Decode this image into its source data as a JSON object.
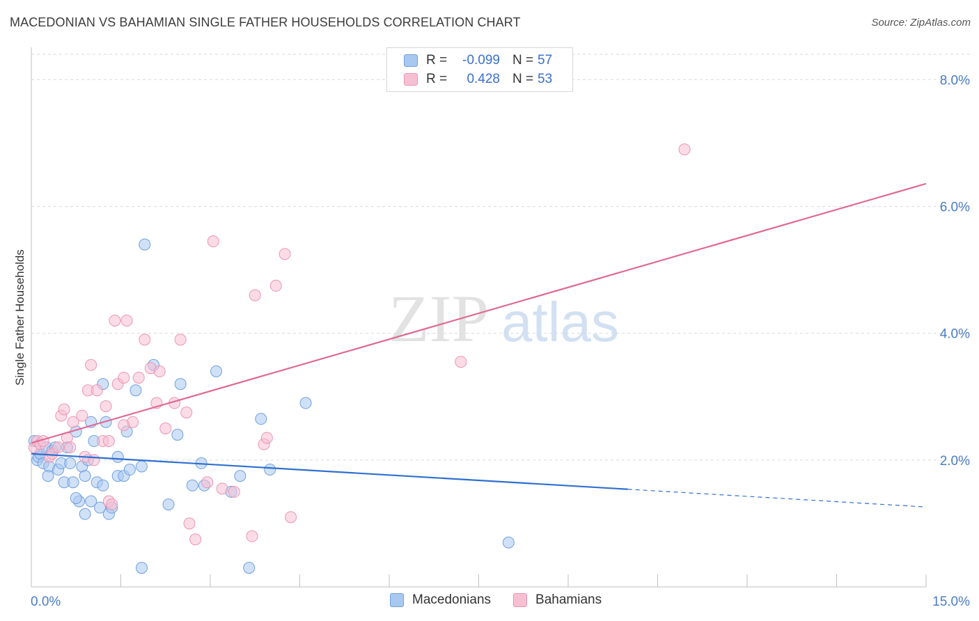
{
  "title": "MACEDONIAN VS BAHAMIAN SINGLE FATHER HOUSEHOLDS CORRELATION CHART",
  "source": "Source: ZipAtlas.com",
  "watermark": {
    "zip": "ZIP",
    "atlas": "atlas"
  },
  "legend": {
    "rows": [
      {
        "r_label": "R =",
        "r_value": "-0.099",
        "n_label": "N =",
        "n_value": "57"
      },
      {
        "r_label": "R =",
        "r_value": "0.428",
        "n_label": "N =",
        "n_value": "53"
      }
    ]
  },
  "bottom_legend": {
    "macedonians": "Macedonians",
    "bahamians": "Bahamians"
  },
  "colors": {
    "macedonian_fill": "#a9c8f0",
    "macedonian_stroke": "#6f9fe0",
    "macedonian_line": "#2e6fcf",
    "bahamian_fill": "#f7bfd2",
    "bahamian_stroke": "#ec94b2",
    "bahamian_line": "#e06a95",
    "tick_text": "#4a7cc9"
  },
  "chart_data": {
    "type": "scatter",
    "xlabel": "",
    "ylabel": "Single Father Households",
    "xlim": [
      0,
      15
    ],
    "ylim": [
      0,
      8.4
    ],
    "x_tick_labels": [
      {
        "value": 0,
        "label": "0.0%"
      },
      {
        "value": 15,
        "label": "15.0%"
      }
    ],
    "y_tick_labels": [
      {
        "value": 2,
        "label": "2.0%"
      },
      {
        "value": 4,
        "label": "4.0%"
      },
      {
        "value": 6,
        "label": "6.0%"
      },
      {
        "value": 8,
        "label": "8.0%"
      }
    ],
    "series": [
      {
        "name": "Macedonians",
        "r": -0.099,
        "n": 57,
        "trend": {
          "x0": 0,
          "y0": 2.1,
          "x_solid_end": 10,
          "x1": 15,
          "y1": 1.26
        },
        "points": [
          [
            0.05,
            2.3
          ],
          [
            0.1,
            2.0
          ],
          [
            0.12,
            2.05
          ],
          [
            0.15,
            2.1
          ],
          [
            0.2,
            1.95
          ],
          [
            0.25,
            2.2
          ],
          [
            0.3,
            1.9
          ],
          [
            0.35,
            2.15
          ],
          [
            0.28,
            1.75
          ],
          [
            0.4,
            2.2
          ],
          [
            0.45,
            1.85
          ],
          [
            0.5,
            1.95
          ],
          [
            0.55,
            1.65
          ],
          [
            0.6,
            2.2
          ],
          [
            0.65,
            1.95
          ],
          [
            0.7,
            1.65
          ],
          [
            0.85,
            1.9
          ],
          [
            0.75,
            2.45
          ],
          [
            0.95,
            2.0
          ],
          [
            1.0,
            2.6
          ],
          [
            1.05,
            2.3
          ],
          [
            0.9,
            1.75
          ],
          [
            0.8,
            1.35
          ],
          [
            0.75,
            1.4
          ],
          [
            0.9,
            1.15
          ],
          [
            1.0,
            1.35
          ],
          [
            1.1,
            1.65
          ],
          [
            1.15,
            1.25
          ],
          [
            1.2,
            1.6
          ],
          [
            1.3,
            1.15
          ],
          [
            1.35,
            1.25
          ],
          [
            1.45,
            2.05
          ],
          [
            1.25,
            2.6
          ],
          [
            1.45,
            1.75
          ],
          [
            1.55,
            1.75
          ],
          [
            1.6,
            2.45
          ],
          [
            1.65,
            1.85
          ],
          [
            1.75,
            3.1
          ],
          [
            1.85,
            1.9
          ],
          [
            1.9,
            5.4
          ],
          [
            2.05,
            3.5
          ],
          [
            2.3,
            1.3
          ],
          [
            2.45,
            2.4
          ],
          [
            2.5,
            3.2
          ],
          [
            2.7,
            1.6
          ],
          [
            2.85,
            1.95
          ],
          [
            2.9,
            1.6
          ],
          [
            3.1,
            3.4
          ],
          [
            3.35,
            1.5
          ],
          [
            3.5,
            1.75
          ],
          [
            3.85,
            2.65
          ],
          [
            4.0,
            1.85
          ],
          [
            4.6,
            2.9
          ],
          [
            8.0,
            0.7
          ],
          [
            1.85,
            0.3
          ],
          [
            3.65,
            0.3
          ],
          [
            1.2,
            3.2
          ]
        ]
      },
      {
        "name": "Bahamians",
        "r": 0.428,
        "n": 53,
        "trend": {
          "x0": 0,
          "y0": 2.27,
          "x1": 15,
          "y1": 6.36
        },
        "points": [
          [
            0.05,
            2.2
          ],
          [
            0.1,
            2.3
          ],
          [
            0.15,
            2.25
          ],
          [
            0.2,
            2.3
          ],
          [
            0.3,
            2.05
          ],
          [
            0.35,
            2.1
          ],
          [
            0.45,
            2.2
          ],
          [
            0.5,
            2.7
          ],
          [
            0.55,
            2.8
          ],
          [
            0.6,
            2.35
          ],
          [
            0.65,
            2.2
          ],
          [
            0.7,
            2.6
          ],
          [
            0.85,
            2.7
          ],
          [
            0.9,
            2.05
          ],
          [
            0.95,
            3.1
          ],
          [
            1.0,
            3.5
          ],
          [
            1.05,
            2.0
          ],
          [
            1.1,
            3.1
          ],
          [
            1.2,
            2.3
          ],
          [
            1.25,
            2.85
          ],
          [
            1.3,
            2.3
          ],
          [
            1.4,
            4.2
          ],
          [
            1.45,
            3.2
          ],
          [
            1.55,
            3.3
          ],
          [
            1.6,
            4.2
          ],
          [
            1.7,
            2.6
          ],
          [
            1.8,
            3.3
          ],
          [
            1.9,
            3.9
          ],
          [
            2.0,
            3.45
          ],
          [
            2.1,
            2.9
          ],
          [
            2.15,
            3.4
          ],
          [
            2.25,
            2.5
          ],
          [
            2.4,
            2.9
          ],
          [
            2.5,
            3.9
          ],
          [
            2.6,
            2.75
          ],
          [
            2.65,
            1.0
          ],
          [
            2.75,
            0.75
          ],
          [
            2.95,
            1.65
          ],
          [
            3.05,
            5.45
          ],
          [
            3.2,
            1.55
          ],
          [
            3.4,
            1.5
          ],
          [
            3.7,
            0.8
          ],
          [
            3.75,
            4.6
          ],
          [
            3.9,
            2.25
          ],
          [
            3.95,
            2.35
          ],
          [
            4.1,
            4.75
          ],
          [
            4.25,
            5.25
          ],
          [
            4.35,
            1.1
          ],
          [
            7.2,
            3.55
          ],
          [
            10.95,
            6.9
          ],
          [
            1.3,
            1.35
          ],
          [
            1.35,
            1.3
          ],
          [
            1.55,
            2.55
          ]
        ]
      }
    ]
  }
}
